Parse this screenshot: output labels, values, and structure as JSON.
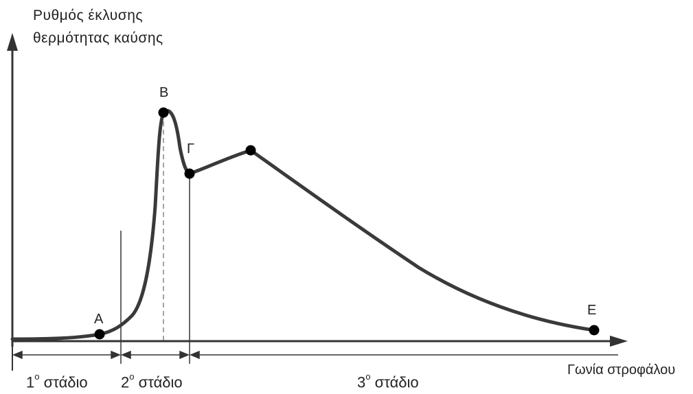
{
  "axes": {
    "y_label_line1": "Ρυθμός έκλυσης",
    "y_label_line2": "θερμότητας καύσης",
    "x_label": "Γωνία στροφάλου"
  },
  "points": {
    "A": "A",
    "B": "B",
    "G": "Γ",
    "E": "E"
  },
  "stages": [
    {
      "num": "1",
      "sup": "ο",
      "text": "στάδιο"
    },
    {
      "num": "2",
      "sup": "ο",
      "text": "στάδιο"
    },
    {
      "num": "3",
      "sup": "ο",
      "text": "στάδιο"
    }
  ],
  "colors": {
    "curve": "#3a3a3a",
    "axis": "#333333",
    "marker": "#000000"
  }
}
